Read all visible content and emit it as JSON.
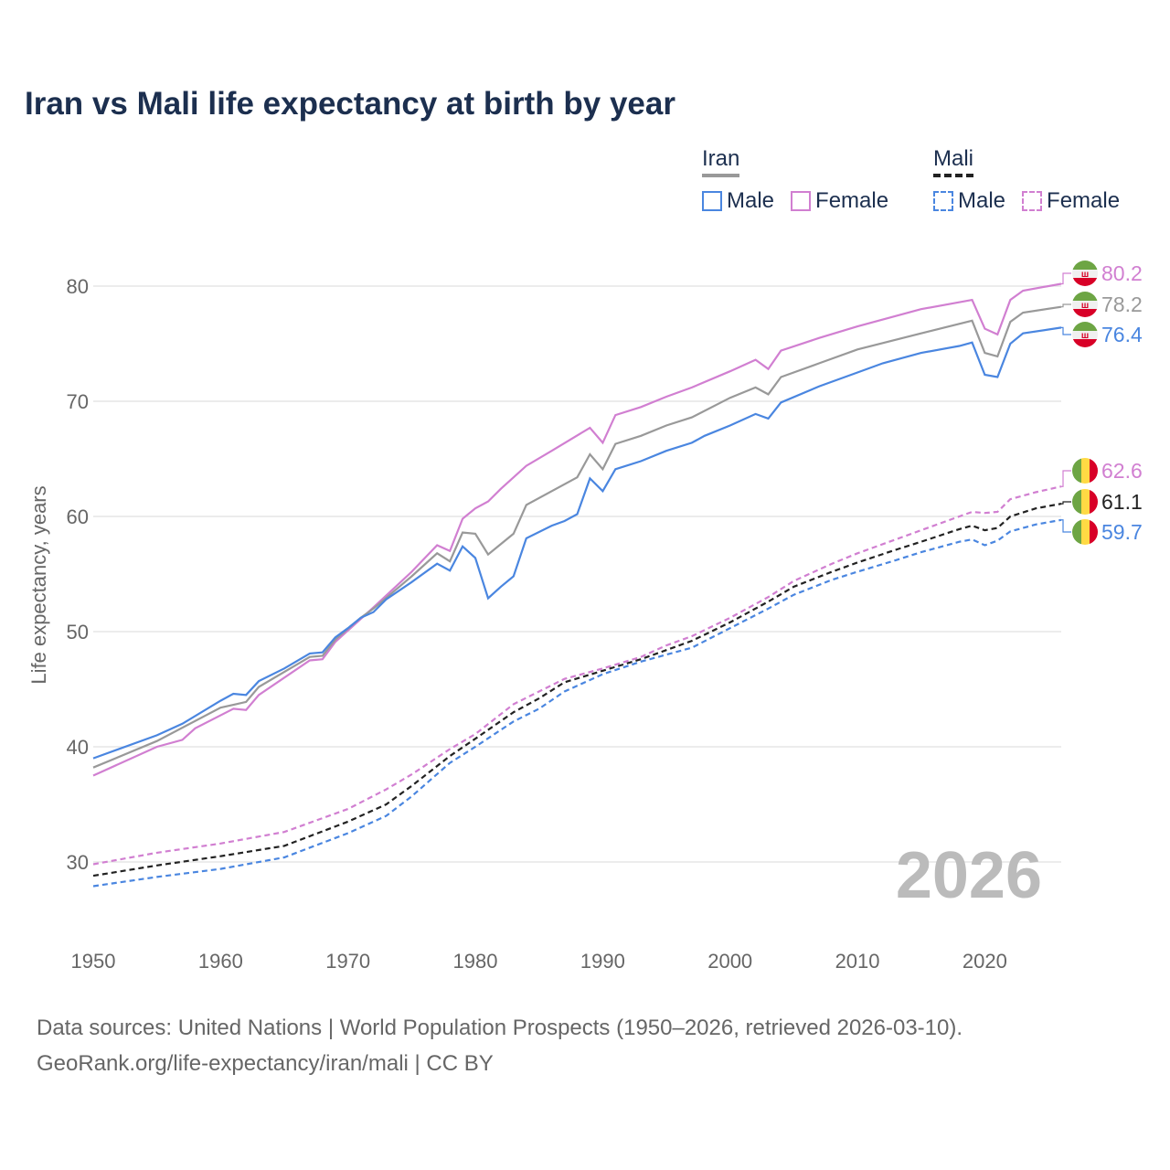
{
  "chart_data": {
    "type": "line",
    "title": "Iran vs Mali life expectancy at birth by year",
    "xlabel": "",
    "ylabel": "Life expectancy, years",
    "xlim": [
      1950,
      2026
    ],
    "ylim": [
      25,
      83
    ],
    "x_ticks": [
      "1950",
      "1960",
      "1970",
      "1980",
      "1990",
      "2000",
      "2010",
      "2020"
    ],
    "y_ticks": [
      "30",
      "40",
      "50",
      "60",
      "70",
      "80"
    ],
    "grid": true,
    "year_watermark": "2026",
    "legend": {
      "placement": "top-right",
      "groups": [
        {
          "country": "Iran",
          "items": [
            "Male",
            "Female"
          ]
        },
        {
          "country": "Mali",
          "items": [
            "Male",
            "Female"
          ]
        }
      ]
    },
    "series": [
      {
        "name": "Iran Female",
        "country": "Iran",
        "color": "#d17fd1",
        "dashed": false,
        "end_label": "80.2",
        "points": [
          [
            1950,
            37.5
          ],
          [
            1955,
            40.0
          ],
          [
            1957,
            40.6
          ],
          [
            1958,
            41.6
          ],
          [
            1961,
            43.3
          ],
          [
            1962,
            43.2
          ],
          [
            1963,
            44.5
          ],
          [
            1967,
            47.5
          ],
          [
            1968,
            47.6
          ],
          [
            1969,
            49.1
          ],
          [
            1972,
            52.1
          ],
          [
            1975,
            55.2
          ],
          [
            1977,
            57.5
          ],
          [
            1978,
            57.0
          ],
          [
            1979,
            59.8
          ],
          [
            1980,
            60.7
          ],
          [
            1981,
            61.3
          ],
          [
            1982,
            62.4
          ],
          [
            1984,
            64.4
          ],
          [
            1986,
            65.7
          ],
          [
            1989,
            67.7
          ],
          [
            1990,
            66.4
          ],
          [
            1991,
            68.8
          ],
          [
            1993,
            69.5
          ],
          [
            1995,
            70.4
          ],
          [
            1997,
            71.2
          ],
          [
            2000,
            72.6
          ],
          [
            2002,
            73.6
          ],
          [
            2003,
            72.8
          ],
          [
            2004,
            74.4
          ],
          [
            2007,
            75.5
          ],
          [
            2010,
            76.5
          ],
          [
            2015,
            78.0
          ],
          [
            2019,
            78.8
          ],
          [
            2020,
            76.3
          ],
          [
            2021,
            75.8
          ],
          [
            2022,
            78.8
          ],
          [
            2023,
            79.6
          ],
          [
            2026,
            80.2
          ]
        ]
      },
      {
        "name": "Iran Total",
        "country": "Iran",
        "color": "#999999",
        "dashed": false,
        "end_label": "78.2",
        "points": [
          [
            1950,
            38.2
          ],
          [
            1955,
            40.5
          ],
          [
            1960,
            43.4
          ],
          [
            1962,
            43.9
          ],
          [
            1963,
            45.2
          ],
          [
            1967,
            47.8
          ],
          [
            1968,
            47.9
          ],
          [
            1969,
            49.3
          ],
          [
            1971,
            51.2
          ],
          [
            1972,
            52.0
          ],
          [
            1975,
            54.8
          ],
          [
            1977,
            56.8
          ],
          [
            1978,
            56.1
          ],
          [
            1979,
            58.6
          ],
          [
            1980,
            58.5
          ],
          [
            1981,
            56.7
          ],
          [
            1983,
            58.5
          ],
          [
            1984,
            61.0
          ],
          [
            1988,
            63.4
          ],
          [
            1989,
            65.4
          ],
          [
            1990,
            64.1
          ],
          [
            1991,
            66.3
          ],
          [
            1993,
            67.0
          ],
          [
            1995,
            67.9
          ],
          [
            1997,
            68.6
          ],
          [
            2000,
            70.3
          ],
          [
            2002,
            71.2
          ],
          [
            2003,
            70.6
          ],
          [
            2004,
            72.1
          ],
          [
            2007,
            73.3
          ],
          [
            2010,
            74.5
          ],
          [
            2015,
            75.9
          ],
          [
            2019,
            77.0
          ],
          [
            2020,
            74.2
          ],
          [
            2021,
            73.9
          ],
          [
            2022,
            76.9
          ],
          [
            2023,
            77.7
          ],
          [
            2026,
            78.2
          ]
        ]
      },
      {
        "name": "Iran Male",
        "country": "Iran",
        "color": "#4a86e0",
        "dashed": false,
        "end_label": "76.4",
        "points": [
          [
            1950,
            39.0
          ],
          [
            1955,
            41.0
          ],
          [
            1957,
            42.0
          ],
          [
            1960,
            44.0
          ],
          [
            1961,
            44.6
          ],
          [
            1962,
            44.5
          ],
          [
            1963,
            45.7
          ],
          [
            1965,
            46.8
          ],
          [
            1967,
            48.1
          ],
          [
            1968,
            48.2
          ],
          [
            1969,
            49.5
          ],
          [
            1970,
            50.3
          ],
          [
            1971,
            51.2
          ],
          [
            1972,
            51.7
          ],
          [
            1973,
            52.8
          ],
          [
            1975,
            54.3
          ],
          [
            1977,
            55.9
          ],
          [
            1978,
            55.3
          ],
          [
            1979,
            57.4
          ],
          [
            1980,
            56.4
          ],
          [
            1981,
            52.9
          ],
          [
            1982,
            53.9
          ],
          [
            1983,
            54.8
          ],
          [
            1984,
            58.1
          ],
          [
            1986,
            59.2
          ],
          [
            1987,
            59.6
          ],
          [
            1988,
            60.2
          ],
          [
            1989,
            63.3
          ],
          [
            1990,
            62.2
          ],
          [
            1991,
            64.1
          ],
          [
            1993,
            64.8
          ],
          [
            1995,
            65.7
          ],
          [
            1997,
            66.4
          ],
          [
            1998,
            67.0
          ],
          [
            2000,
            67.9
          ],
          [
            2002,
            68.9
          ],
          [
            2003,
            68.5
          ],
          [
            2004,
            69.9
          ],
          [
            2007,
            71.3
          ],
          [
            2010,
            72.5
          ],
          [
            2012,
            73.3
          ],
          [
            2015,
            74.2
          ],
          [
            2018,
            74.8
          ],
          [
            2019,
            75.1
          ],
          [
            2020,
            72.3
          ],
          [
            2021,
            72.1
          ],
          [
            2022,
            75.0
          ],
          [
            2023,
            75.9
          ],
          [
            2026,
            76.4
          ]
        ]
      },
      {
        "name": "Mali Female",
        "country": "Mali",
        "color": "#d17fd1",
        "dashed": true,
        "end_label": "62.6",
        "points": [
          [
            1950,
            29.8
          ],
          [
            1955,
            30.8
          ],
          [
            1960,
            31.6
          ],
          [
            1965,
            32.6
          ],
          [
            1970,
            34.6
          ],
          [
            1973,
            36.3
          ],
          [
            1975,
            37.6
          ],
          [
            1978,
            39.8
          ],
          [
            1980,
            41.1
          ],
          [
            1983,
            43.7
          ],
          [
            1985,
            44.8
          ],
          [
            1987,
            45.9
          ],
          [
            1990,
            46.8
          ],
          [
            1993,
            47.8
          ],
          [
            1995,
            48.8
          ],
          [
            1997,
            49.6
          ],
          [
            2000,
            51.2
          ],
          [
            2003,
            53.0
          ],
          [
            2005,
            54.4
          ],
          [
            2008,
            55.9
          ],
          [
            2010,
            56.8
          ],
          [
            2013,
            58.0
          ],
          [
            2015,
            58.8
          ],
          [
            2018,
            60.0
          ],
          [
            2019,
            60.4
          ],
          [
            2020,
            60.3
          ],
          [
            2021,
            60.4
          ],
          [
            2022,
            61.5
          ],
          [
            2024,
            62.1
          ],
          [
            2026,
            62.6
          ]
        ]
      },
      {
        "name": "Mali Total",
        "country": "Mali",
        "color": "#222222",
        "dashed": true,
        "end_label": "61.1",
        "points": [
          [
            1950,
            28.8
          ],
          [
            1955,
            29.7
          ],
          [
            1960,
            30.5
          ],
          [
            1965,
            31.4
          ],
          [
            1970,
            33.5
          ],
          [
            1973,
            35.0
          ],
          [
            1975,
            36.6
          ],
          [
            1978,
            39.2
          ],
          [
            1980,
            40.7
          ],
          [
            1983,
            43.0
          ],
          [
            1985,
            44.2
          ],
          [
            1987,
            45.6
          ],
          [
            1990,
            46.6
          ],
          [
            1993,
            47.6
          ],
          [
            1995,
            48.4
          ],
          [
            1997,
            49.2
          ],
          [
            2000,
            50.8
          ],
          [
            2003,
            52.6
          ],
          [
            2005,
            53.9
          ],
          [
            2008,
            55.2
          ],
          [
            2010,
            56.0
          ],
          [
            2013,
            57.1
          ],
          [
            2015,
            57.8
          ],
          [
            2018,
            58.9
          ],
          [
            2019,
            59.2
          ],
          [
            2020,
            58.8
          ],
          [
            2021,
            59.0
          ],
          [
            2022,
            60.0
          ],
          [
            2024,
            60.7
          ],
          [
            2026,
            61.1
          ]
        ]
      },
      {
        "name": "Mali Male",
        "country": "Mali",
        "color": "#4a86e0",
        "dashed": true,
        "end_label": "59.7",
        "points": [
          [
            1950,
            27.9
          ],
          [
            1955,
            28.7
          ],
          [
            1960,
            29.4
          ],
          [
            1965,
            30.4
          ],
          [
            1970,
            32.5
          ],
          [
            1973,
            34.0
          ],
          [
            1975,
            35.7
          ],
          [
            1978,
            38.6
          ],
          [
            1980,
            40.0
          ],
          [
            1983,
            42.2
          ],
          [
            1985,
            43.3
          ],
          [
            1987,
            44.8
          ],
          [
            1990,
            46.3
          ],
          [
            1993,
            47.4
          ],
          [
            1995,
            48.0
          ],
          [
            1997,
            48.6
          ],
          [
            2000,
            50.3
          ],
          [
            2003,
            52.0
          ],
          [
            2005,
            53.2
          ],
          [
            2008,
            54.5
          ],
          [
            2010,
            55.2
          ],
          [
            2013,
            56.2
          ],
          [
            2015,
            56.9
          ],
          [
            2018,
            57.8
          ],
          [
            2019,
            58.0
          ],
          [
            2020,
            57.5
          ],
          [
            2021,
            57.9
          ],
          [
            2022,
            58.7
          ],
          [
            2024,
            59.3
          ],
          [
            2026,
            59.7
          ]
        ]
      }
    ]
  },
  "footer": {
    "line1": "Data sources: United Nations | World Population Prospects (1950–2026, retrieved 2026-03-10).",
    "line2": "GeoRank.org/life-expectancy/iran/mali | CC BY"
  }
}
